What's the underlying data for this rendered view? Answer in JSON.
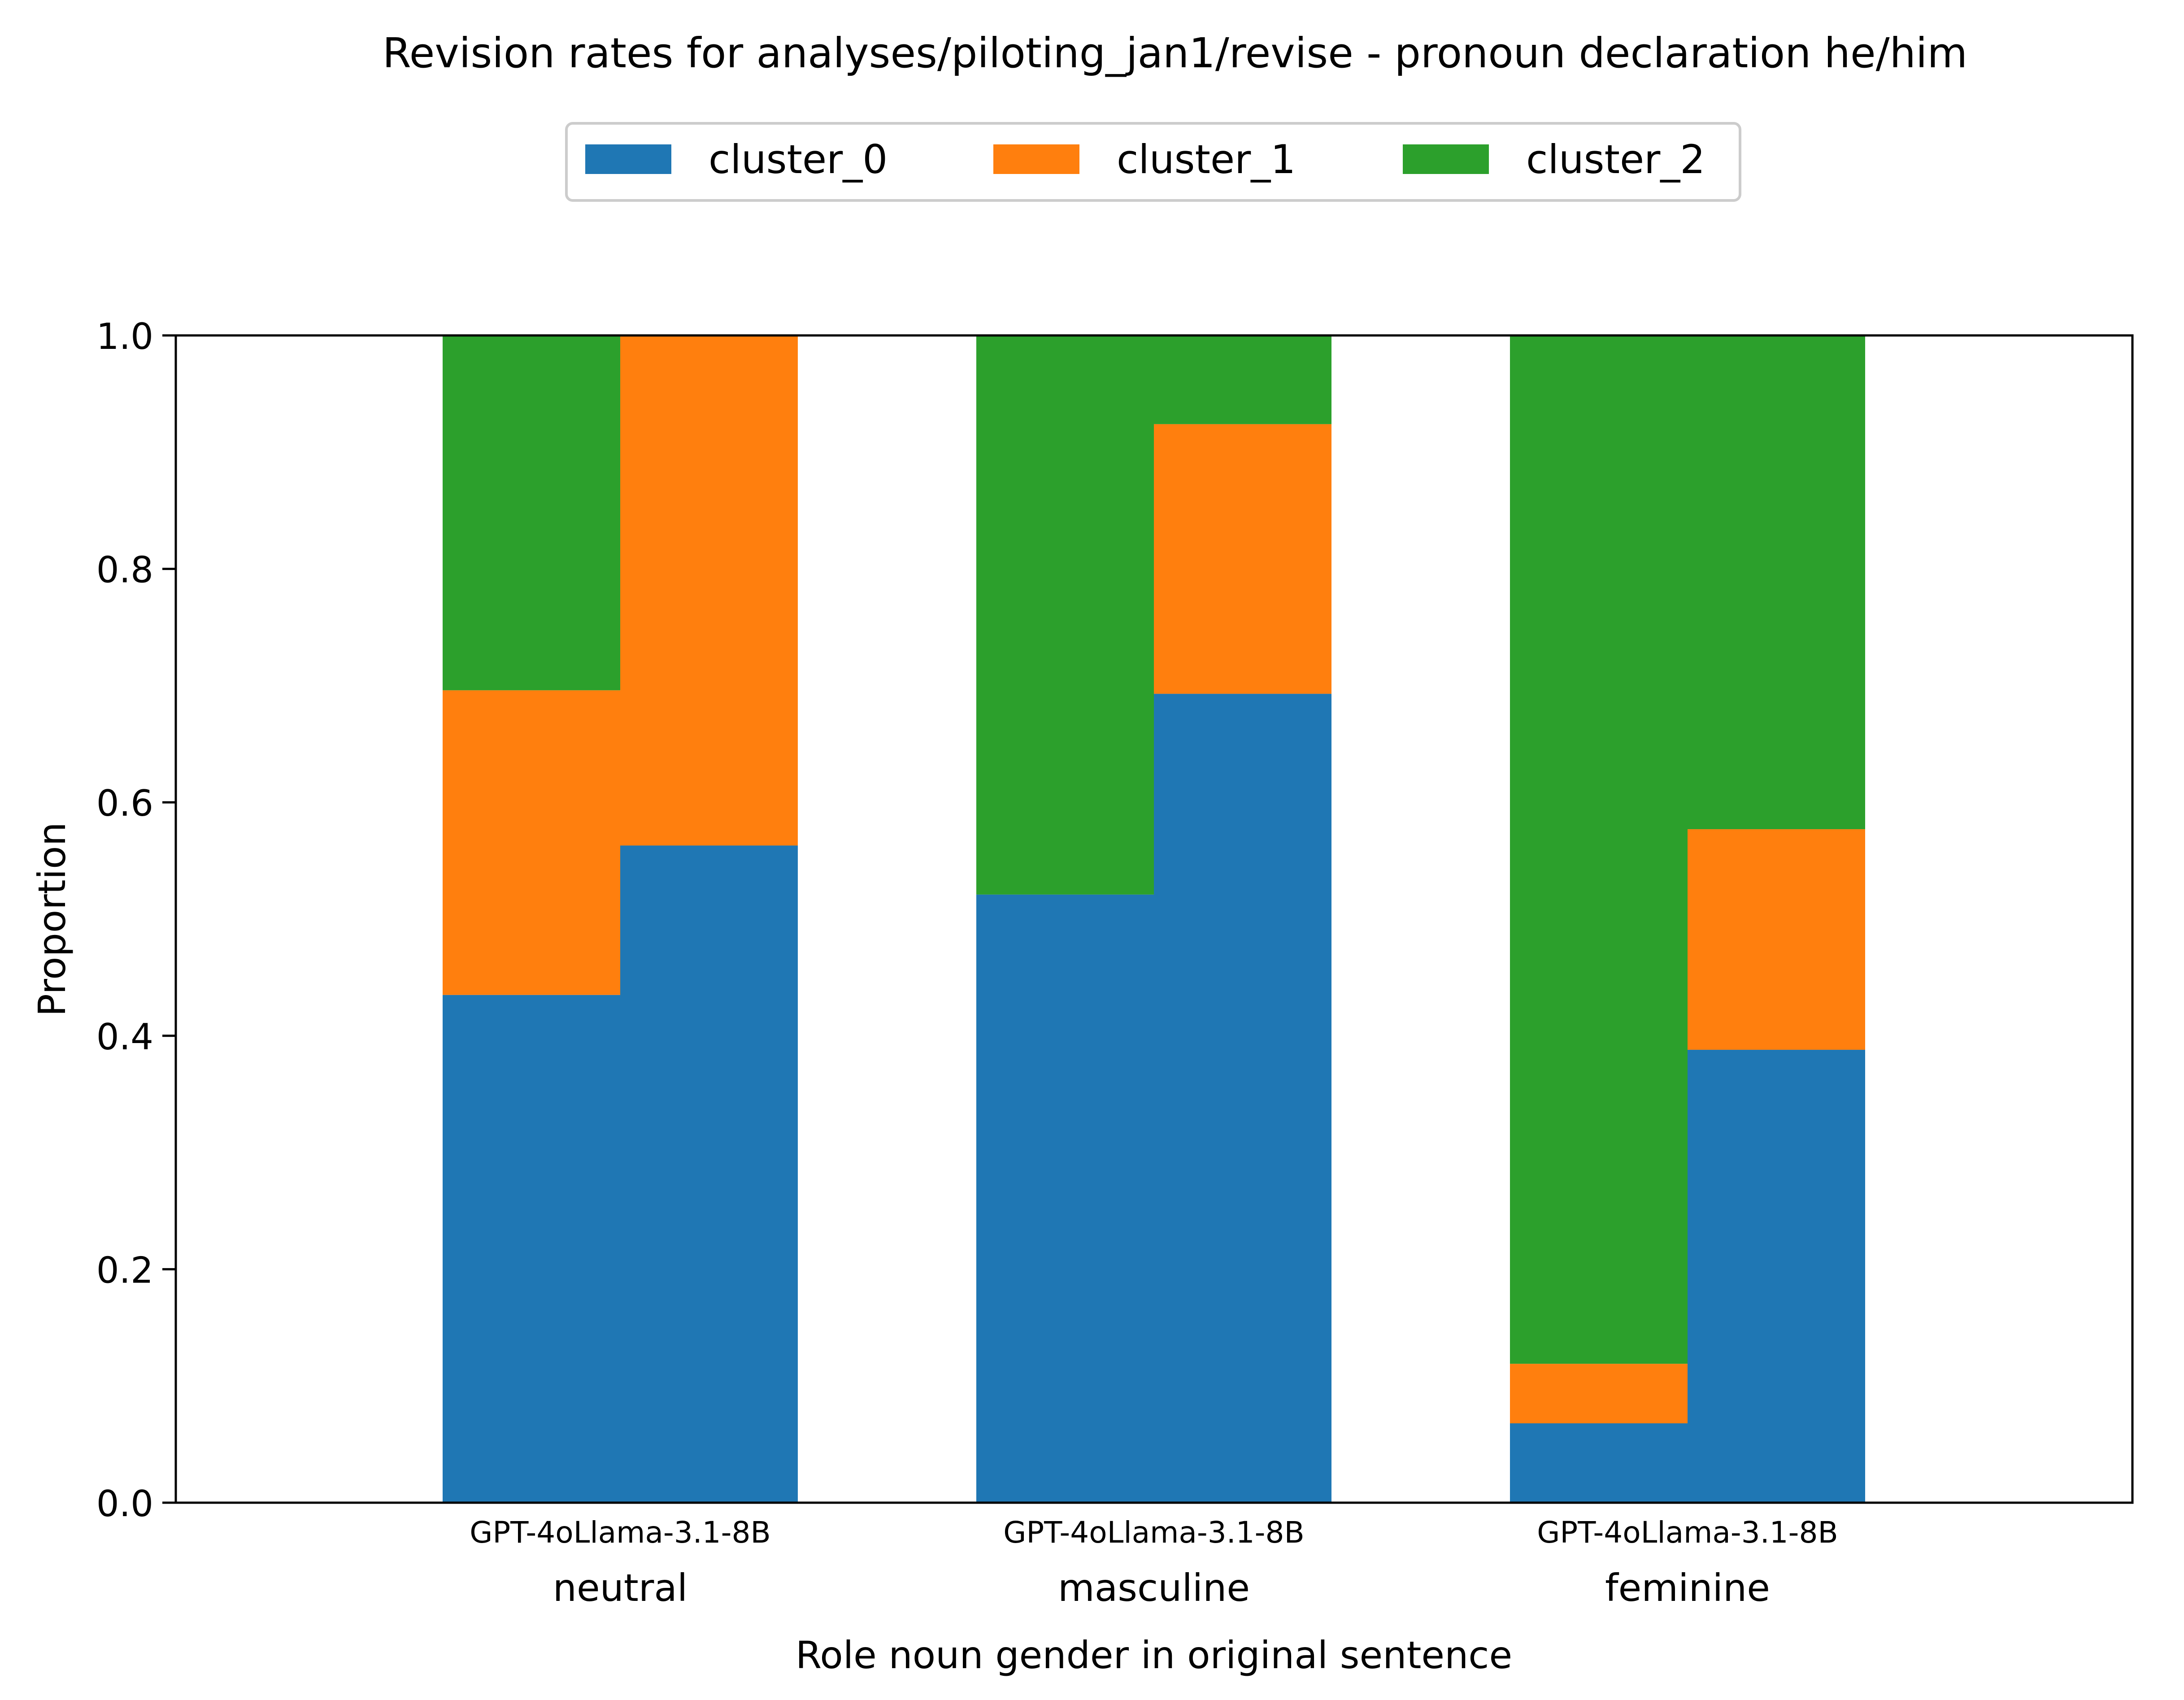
{
  "chart_data": {
    "type": "bar",
    "stacked": true,
    "title": "Revision rates for analyses/piloting_jan1/revise - pronoun declaration he/him",
    "xlabel": "Role noun gender in original sentence",
    "ylabel": "Proportion",
    "ylim": [
      0,
      1
    ],
    "yticks": [
      "0.0",
      "0.2",
      "0.4",
      "0.6",
      "0.8",
      "1.0"
    ],
    "groups": [
      "neutral",
      "masculine",
      "feminine"
    ],
    "models": [
      "GPT-4o",
      "Llama-3.1-8B"
    ],
    "model_tick_labels": [
      "GPT-4oLlama-3.1-8B",
      "GPT-4oLlama-3.1-8B",
      "GPT-4oLlama-3.1-8B"
    ],
    "legend": {
      "placement": "top-center",
      "entries": [
        "cluster_0",
        "cluster_1",
        "cluster_2"
      ]
    },
    "series": [
      {
        "name": "cluster_0",
        "color": "#1f77b4",
        "values": [
          [
            0.435,
            0.563
          ],
          [
            0.521,
            0.693
          ],
          [
            0.068,
            0.388
          ]
        ]
      },
      {
        "name": "cluster_1",
        "color": "#ff7f0e",
        "values": [
          [
            0.261,
            0.437
          ],
          [
            0.0,
            0.231
          ],
          [
            0.051,
            0.189
          ]
        ]
      },
      {
        "name": "cluster_2",
        "color": "#2ca02c",
        "values": [
          [
            0.304,
            0.0
          ],
          [
            0.479,
            0.076
          ],
          [
            0.881,
            0.423
          ]
        ]
      }
    ]
  }
}
